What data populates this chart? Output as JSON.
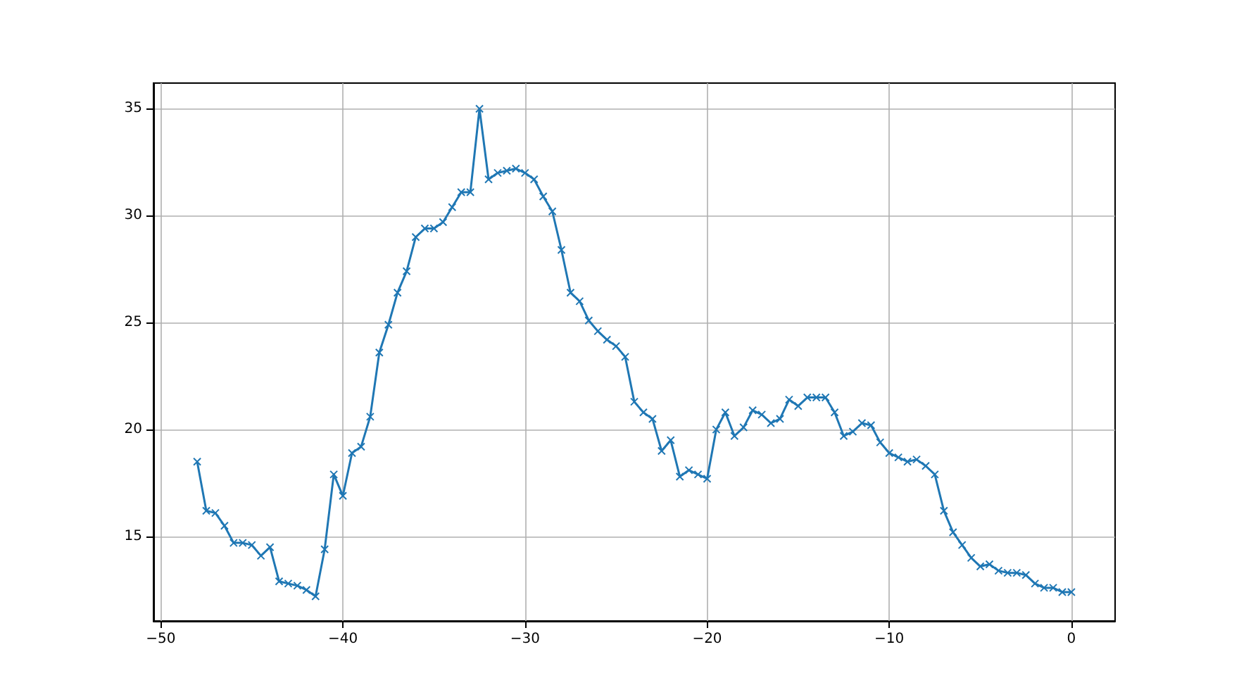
{
  "chart_data": {
    "type": "line",
    "x": [
      -48,
      -47.5,
      -47,
      -46.5,
      -46,
      -45.5,
      -45,
      -44.5,
      -44,
      -43.5,
      -43,
      -42.5,
      -42,
      -41.5,
      -41,
      -40.5,
      -40,
      -39.5,
      -39,
      -38.5,
      -38,
      -37.5,
      -37,
      -36.5,
      -36,
      -35.5,
      -35,
      -34.5,
      -34,
      -33.5,
      -33,
      -32.5,
      -32,
      -31.5,
      -31,
      -30.5,
      -30,
      -29.5,
      -29,
      -28.5,
      -28,
      -27.5,
      -27,
      -26.5,
      -26,
      -25.5,
      -25,
      -24.5,
      -24,
      -23.5,
      -23,
      -22.5,
      -22,
      -21.5,
      -21,
      -20.5,
      -20,
      -19.5,
      -19,
      -18.5,
      -18,
      -17.5,
      -17,
      -16.5,
      -16,
      -15.5,
      -15,
      -14.5,
      -14,
      -13.5,
      -13,
      -12.5,
      -12,
      -11.5,
      -11,
      -10.5,
      -10,
      -9.5,
      -9,
      -8.5,
      -8,
      -7.5,
      -7,
      -6.5,
      -6,
      -5.5,
      -5,
      -4.5,
      -4,
      -3.5,
      -3,
      -2.5,
      -2,
      -1.5,
      -1,
      -0.5,
      0
    ],
    "series": [
      {
        "color": "#1f77b4",
        "values": [
          18.5,
          16.2,
          16.1,
          15.5,
          14.7,
          14.7,
          14.6,
          14.1,
          14.5,
          12.9,
          12.8,
          12.7,
          12.5,
          12.2,
          14.4,
          17.9,
          16.9,
          18.9,
          19.2,
          20.6,
          23.6,
          24.9,
          26.4,
          27.4,
          29.0,
          29.4,
          29.4,
          29.7,
          30.4,
          31.1,
          31.1,
          35.0,
          31.7,
          32.0,
          32.1,
          32.2,
          32.0,
          31.7,
          30.9,
          30.2,
          28.4,
          26.4,
          26.0,
          25.1,
          24.6,
          24.2,
          23.9,
          23.4,
          21.3,
          20.8,
          20.5,
          19.0,
          19.5,
          17.8,
          18.1,
          17.9,
          17.7,
          20.0,
          20.8,
          19.7,
          20.1,
          20.9,
          20.7,
          20.3,
          20.5,
          21.4,
          21.1,
          21.5,
          21.5,
          21.5,
          20.8,
          19.7,
          19.9,
          20.3,
          20.2,
          19.4,
          18.9,
          18.7,
          18.5,
          18.6,
          18.3,
          17.9,
          16.2,
          15.2,
          14.6,
          14.0,
          13.6,
          13.7,
          13.4,
          13.3,
          13.3,
          13.2,
          12.8,
          12.6,
          12.6,
          12.4,
          12.4
        ]
      }
    ],
    "xlim": [
      -50.4,
      2.4
    ],
    "xticks": [
      -50,
      -40,
      -30,
      -20,
      -10,
      0
    ],
    "ylim": [
      11.05,
      36.2
    ],
    "yticks": [
      15,
      20,
      25,
      30,
      35
    ],
    "grid": true,
    "marker": "cross",
    "line_style": "solid"
  }
}
